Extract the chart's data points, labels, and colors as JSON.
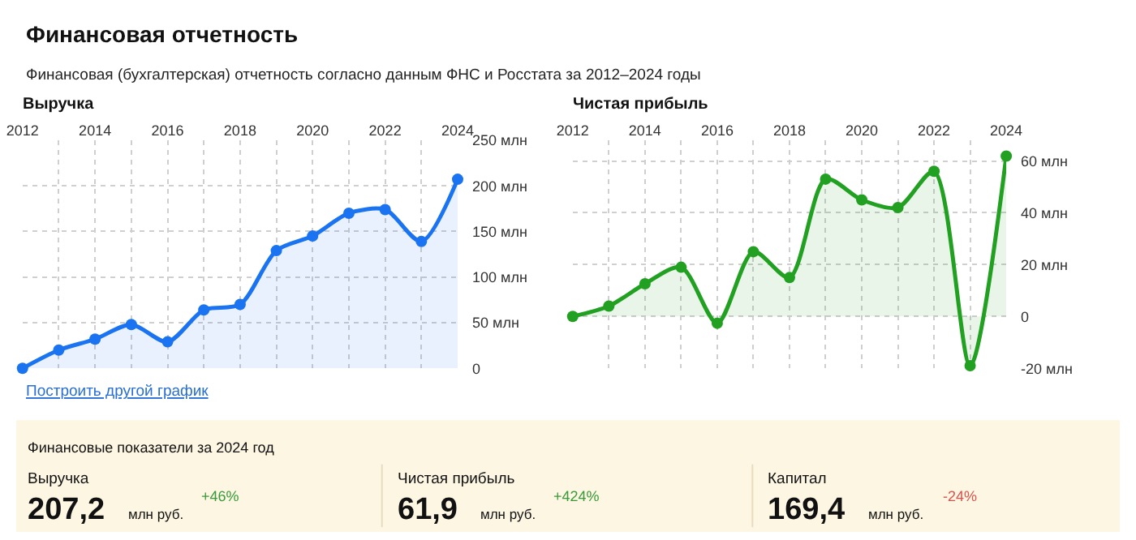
{
  "chart_data": [
    {
      "type": "other",
      "title": "Финансовая отчетность",
      "subtitle": "Финансовая (бухгалтерская) отчетность согласно данным ФНС и Росстата за 2012–2024 годы"
    },
    {
      "type": "line",
      "title": "Выручка",
      "x": [
        2012,
        2013,
        2014,
        2015,
        2016,
        2017,
        2018,
        2019,
        2020,
        2021,
        2022,
        2023,
        2024
      ],
      "series": [
        {
          "color": "#1a73f0",
          "values": [
            0,
            20,
            32,
            48,
            29,
            64,
            70,
            129,
            145,
            170,
            174,
            139,
            207.2
          ]
        }
      ],
      "xlim": [
        2012,
        2024
      ],
      "xticks": [
        2012,
        {
          "value": 2013,
          "label": null
        },
        2014,
        {
          "value": 2015,
          "label": null
        },
        2016,
        {
          "value": 2017,
          "label": null
        },
        2018,
        {
          "value": 2019,
          "label": null
        },
        2020,
        {
          "value": 2021,
          "label": null
        },
        2022,
        {
          "value": 2023,
          "label": null
        },
        2024
      ],
      "ylim": [
        0,
        250
      ],
      "yticks": [
        0,
        {
          "value": 50,
          "label": "50 млн"
        },
        {
          "value": 100,
          "label": "100 млн"
        },
        {
          "value": 150,
          "label": "150 млн"
        },
        {
          "value": 200,
          "label": "200 млн"
        },
        {
          "value": 250,
          "label": "250 млн"
        }
      ],
      "grid": true,
      "marker": "circle",
      "line_style": "solid",
      "annotations": [
        "Построить другой график"
      ]
    },
    {
      "type": "line",
      "title": "Чистая прибыль",
      "x": [
        2012,
        2013,
        2014,
        2015,
        2016,
        2017,
        2018,
        2019,
        2020,
        2021,
        2022,
        2023,
        2024
      ],
      "series": [
        {
          "color": "#22a022",
          "values": [
            0,
            4,
            12.6,
            19,
            -2.6,
            25,
            15,
            53,
            45,
            42,
            56,
            -19,
            61.9
          ]
        }
      ],
      "xlim": [
        2012,
        2024
      ],
      "xticks": [
        2012,
        {
          "value": 2013,
          "label": null
        },
        2014,
        {
          "value": 2015,
          "label": null
        },
        2016,
        {
          "value": 2017,
          "label": null
        },
        2018,
        {
          "value": 2019,
          "label": null
        },
        2020,
        {
          "value": 2021,
          "label": null
        },
        2022,
        {
          "value": 2023,
          "label": null
        },
        2024
      ],
      "ylim": [
        -20,
        68
      ],
      "yticks": [
        {
          "value": -20,
          "label": "-20 млн"
        },
        0,
        {
          "value": 20,
          "label": "20 млн"
        },
        {
          "value": 40,
          "label": "40 млн"
        },
        {
          "value": 60,
          "label": "60 млн"
        }
      ],
      "grid": true,
      "marker": "circle",
      "line_style": "solid"
    },
    {
      "type": "other",
      "title": "Финансовые показатели за 2024 год",
      "annotations": [
        "Выручка",
        "207,2",
        "млн руб.",
        "+46%",
        "Чистая прибыль",
        "61,9",
        "млн руб.",
        "+424%",
        "Капитал",
        "169,4",
        "млн руб.",
        "-24%"
      ]
    }
  ]
}
